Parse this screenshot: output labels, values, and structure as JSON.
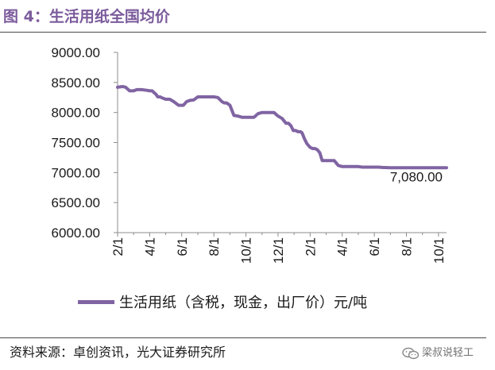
{
  "header": {
    "title": "图 4：生活用纸全国均价"
  },
  "legend": {
    "label": "生活用纸（含税，现金，出厂价）元/吨"
  },
  "footer": {
    "source": "资料来源：卓创资讯，光大证券研究所",
    "watermark_text": "梁叔说轻工",
    "watermark_icon": "wechat-icon"
  },
  "colors": {
    "title": "#7b5b9c",
    "series": "#8064a2"
  },
  "chart_data": {
    "type": "line",
    "title": "",
    "xlabel": "",
    "ylabel": "",
    "ylim": [
      6000,
      9000
    ],
    "yticks": [
      6000,
      6500,
      7000,
      7500,
      8000,
      8500,
      9000
    ],
    "ytick_labels": [
      "6000.00",
      "6500.00",
      "7000.00",
      "7500.00",
      "8000.00",
      "8500.00",
      "9000.00"
    ],
    "xticks": [
      "2/1",
      "4/1",
      "6/1",
      "8/1",
      "10/1",
      "12/1",
      "2/1",
      "4/1",
      "6/1",
      "8/1",
      "10/1"
    ],
    "x_start_label": "2/1",
    "x_end_label": "10/1",
    "grid": false,
    "legend_position": "bottom",
    "series": [
      {
        "name": "生活用纸（含税，现金，出厂价）元/吨",
        "color": "#8064a2",
        "x": [
          0.0,
          0.5,
          0.7,
          1.0,
          1.5,
          2.0,
          2.4,
          3.0,
          3.6,
          4.0,
          4.3,
          4.8,
          5.0,
          5.3,
          5.6,
          6.0,
          6.5,
          7.0,
          7.6,
          8.2,
          8.6,
          9.0,
          9.5,
          10.0,
          10.1,
          10.5,
          11.0,
          11.5,
          12.0,
          12.5,
          13.0,
          13.3,
          13.6,
          14.0,
          14.5,
          15.0,
          15.5,
          16.0,
          16.5,
          17.0,
          17.5,
          18.0,
          18.5,
          19.0,
          19.5,
          20.0,
          20.5,
          21.0,
          21.3,
          21.6,
          21.9,
          22.2,
          22.5,
          22.8,
          23.0,
          23.3,
          23.6,
          24.0,
          24.3,
          24.6,
          24.9,
          25.2,
          25.5,
          25.8,
          26.0,
          26.3,
          26.6,
          27.0,
          27.5,
          28.0,
          28.5,
          29.0,
          29.5,
          30.0,
          30.5,
          30.8,
          31.1,
          31.5,
          32.0,
          32.5,
          33.0,
          34.0,
          35.0,
          36.0,
          37.0,
          38.0,
          39.0,
          39.5,
          40.0,
          40.5,
          41.0
        ],
        "values": [
          8420,
          8430,
          8430,
          8420,
          8360,
          8360,
          8380,
          8380,
          8370,
          8360,
          8360,
          8300,
          8260,
          8260,
          8240,
          8220,
          8220,
          8180,
          8120,
          8120,
          8180,
          8200,
          8210,
          8260,
          8260,
          8260,
          8260,
          8260,
          8260,
          8250,
          8180,
          8160,
          8160,
          8120,
          7950,
          7940,
          7920,
          7920,
          7920,
          7920,
          7980,
          8000,
          8000,
          8000,
          8000,
          7940,
          7900,
          7820,
          7820,
          7780,
          7700,
          7700,
          7680,
          7680,
          7660,
          7560,
          7480,
          7420,
          7400,
          7400,
          7380,
          7330,
          7200,
          7200,
          7200,
          7200,
          7200,
          7200,
          7120,
          7100,
          7100,
          7100,
          7100,
          7100,
          7090,
          7090,
          7090,
          7090,
          7090,
          7090,
          7085,
          7080,
          7080,
          7080,
          7080,
          7080,
          7080,
          7080,
          7080,
          7080,
          7080
        ]
      }
    ],
    "annotations": [
      {
        "text": "7,080.00",
        "target": "last-point"
      }
    ]
  }
}
